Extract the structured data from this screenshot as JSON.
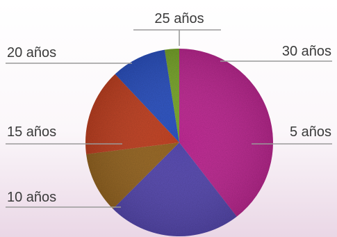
{
  "chart_data": {
    "type": "pie",
    "title": "",
    "start_angle_deg": -9,
    "slices": [
      {
        "label": "30 años",
        "value": 2.5,
        "color": "#7fae2e"
      },
      {
        "label": "5 años",
        "value": 39.5,
        "color": "#c42a97"
      },
      {
        "label": "10 años",
        "value": 23,
        "color": "#5a4cb6"
      },
      {
        "label": "15 años",
        "value": 10.5,
        "color": "#9c6a24"
      },
      {
        "label": "20 años",
        "value": 15,
        "color": "#c84424"
      },
      {
        "label": "25 años",
        "value": 9.5,
        "color": "#2e55c8"
      }
    ]
  }
}
